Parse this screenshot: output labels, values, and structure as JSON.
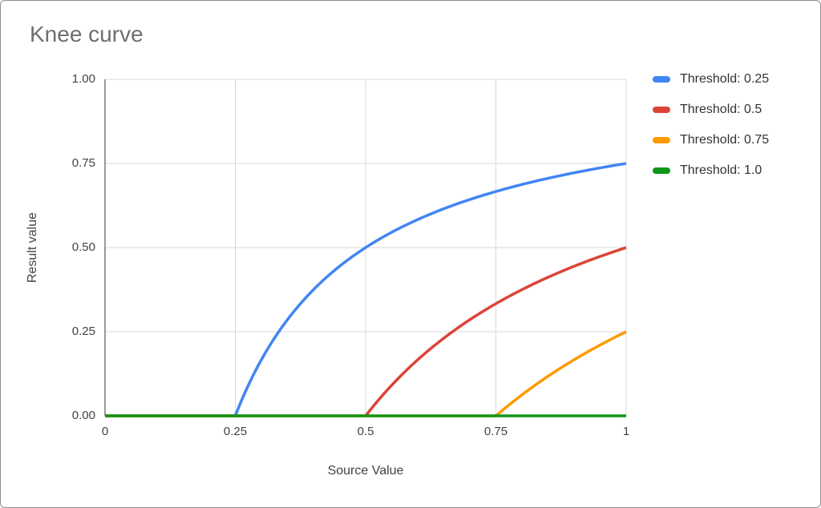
{
  "chart_data": {
    "type": "line",
    "title": "Knee curve",
    "xlabel": "Source Value",
    "ylabel": "Result value",
    "xlim": [
      0,
      1
    ],
    "ylim": [
      0,
      1
    ],
    "grid": true,
    "legend_position": "right",
    "gridline_color": "#dadada",
    "axis_line_color": "#333333",
    "formula": "result = max(0, 1 - threshold / source)",
    "x_ticks": [
      {
        "value": 0,
        "label": "0"
      },
      {
        "value": 0.25,
        "label": "0.25"
      },
      {
        "value": 0.5,
        "label": "0.5"
      },
      {
        "value": 0.75,
        "label": "0.75"
      },
      {
        "value": 1,
        "label": "1"
      }
    ],
    "y_ticks": [
      {
        "value": 0,
        "label": "0.00"
      },
      {
        "value": 0.25,
        "label": "0.25"
      },
      {
        "value": 0.5,
        "label": "0.50"
      },
      {
        "value": 0.75,
        "label": "0.75"
      },
      {
        "value": 1,
        "label": "1.00"
      }
    ],
    "x_samples": [
      0,
      0.05,
      0.1,
      0.15,
      0.2,
      0.25,
      0.3,
      0.35,
      0.4,
      0.45,
      0.5,
      0.55,
      0.6,
      0.65,
      0.7,
      0.75,
      0.8,
      0.85,
      0.9,
      0.95,
      1
    ],
    "series": [
      {
        "name": "Threshold: 0.25",
        "threshold": 0.25,
        "color": "#4285f4",
        "y": [
          0,
          0,
          0,
          0,
          0,
          0,
          0.1667,
          0.2857,
          0.375,
          0.4444,
          0.5,
          0.5455,
          0.5833,
          0.6154,
          0.6429,
          0.6667,
          0.6875,
          0.7059,
          0.7222,
          0.7368,
          0.75
        ]
      },
      {
        "name": "Threshold: 0.5",
        "threshold": 0.5,
        "color": "#db4437",
        "y": [
          0,
          0,
          0,
          0,
          0,
          0,
          0,
          0,
          0,
          0,
          0,
          0.0909,
          0.1667,
          0.2308,
          0.2857,
          0.3333,
          0.375,
          0.4118,
          0.4444,
          0.4737,
          0.5
        ]
      },
      {
        "name": "Threshold: 0.75",
        "threshold": 0.75,
        "color": "#ff9900",
        "y": [
          0,
          0,
          0,
          0,
          0,
          0,
          0,
          0,
          0,
          0,
          0,
          0,
          0,
          0,
          0,
          0,
          0.0625,
          0.1176,
          0.1667,
          0.2105,
          0.25
        ]
      },
      {
        "name": "Threshold: 1.0",
        "threshold": 1.0,
        "color": "#109618",
        "y": [
          0,
          0,
          0,
          0,
          0,
          0,
          0,
          0,
          0,
          0,
          0,
          0,
          0,
          0,
          0,
          0,
          0,
          0,
          0,
          0,
          0
        ]
      }
    ]
  }
}
